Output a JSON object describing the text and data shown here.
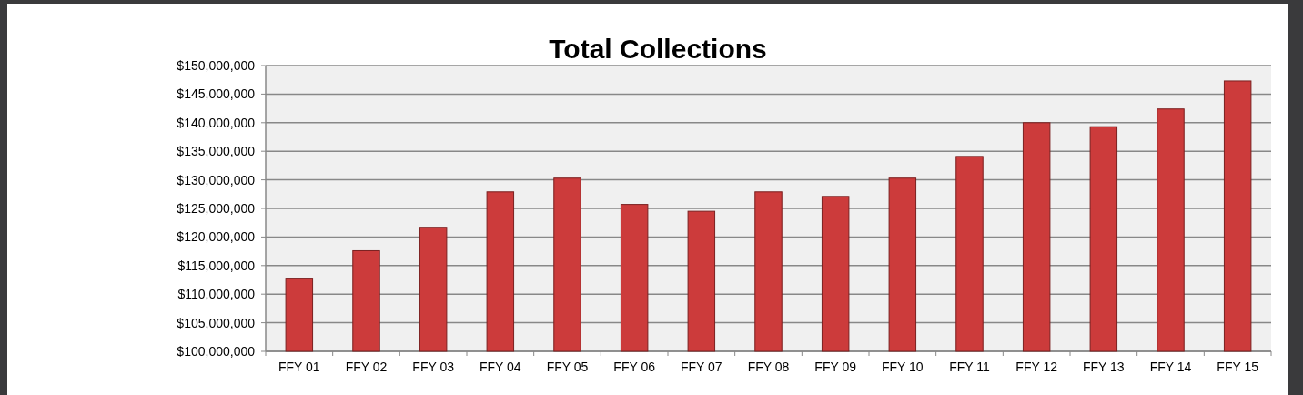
{
  "chart_data": {
    "type": "bar",
    "title": "Total Collections",
    "categories": [
      "FFY 01",
      "FFY 02",
      "FFY 03",
      "FFY 04",
      "FFY 05",
      "FFY 06",
      "FFY 07",
      "FFY 08",
      "FFY 09",
      "FFY 10",
      "FFY 11",
      "FFY 12",
      "FFY 13",
      "FFY 14",
      "FFY 15"
    ],
    "values": [
      112800000,
      117600000,
      121700000,
      127900000,
      130300000,
      125700000,
      124500000,
      127900000,
      127100000,
      130300000,
      134100000,
      140000000,
      139300000,
      142400000,
      147300000
    ],
    "color": "#cc3b3b",
    "ylim": [
      100000000,
      150000000
    ],
    "yticks": [
      {
        "value": 100000000,
        "label": "$100,000,000"
      },
      {
        "value": 105000000,
        "label": "$105,000,000"
      },
      {
        "value": 110000000,
        "label": "$110,000,000"
      },
      {
        "value": 115000000,
        "label": "$115,000,000"
      },
      {
        "value": 120000000,
        "label": "$120,000,000"
      },
      {
        "value": 125000000,
        "label": "$125,000,000"
      },
      {
        "value": 130000000,
        "label": "$130,000,000"
      },
      {
        "value": 135000000,
        "label": "$135,000,000"
      },
      {
        "value": 140000000,
        "label": "$140,000,000"
      },
      {
        "value": 145000000,
        "label": "$145,000,000"
      },
      {
        "value": 150000000,
        "label": "$150,000,000"
      }
    ],
    "grid": "y"
  }
}
